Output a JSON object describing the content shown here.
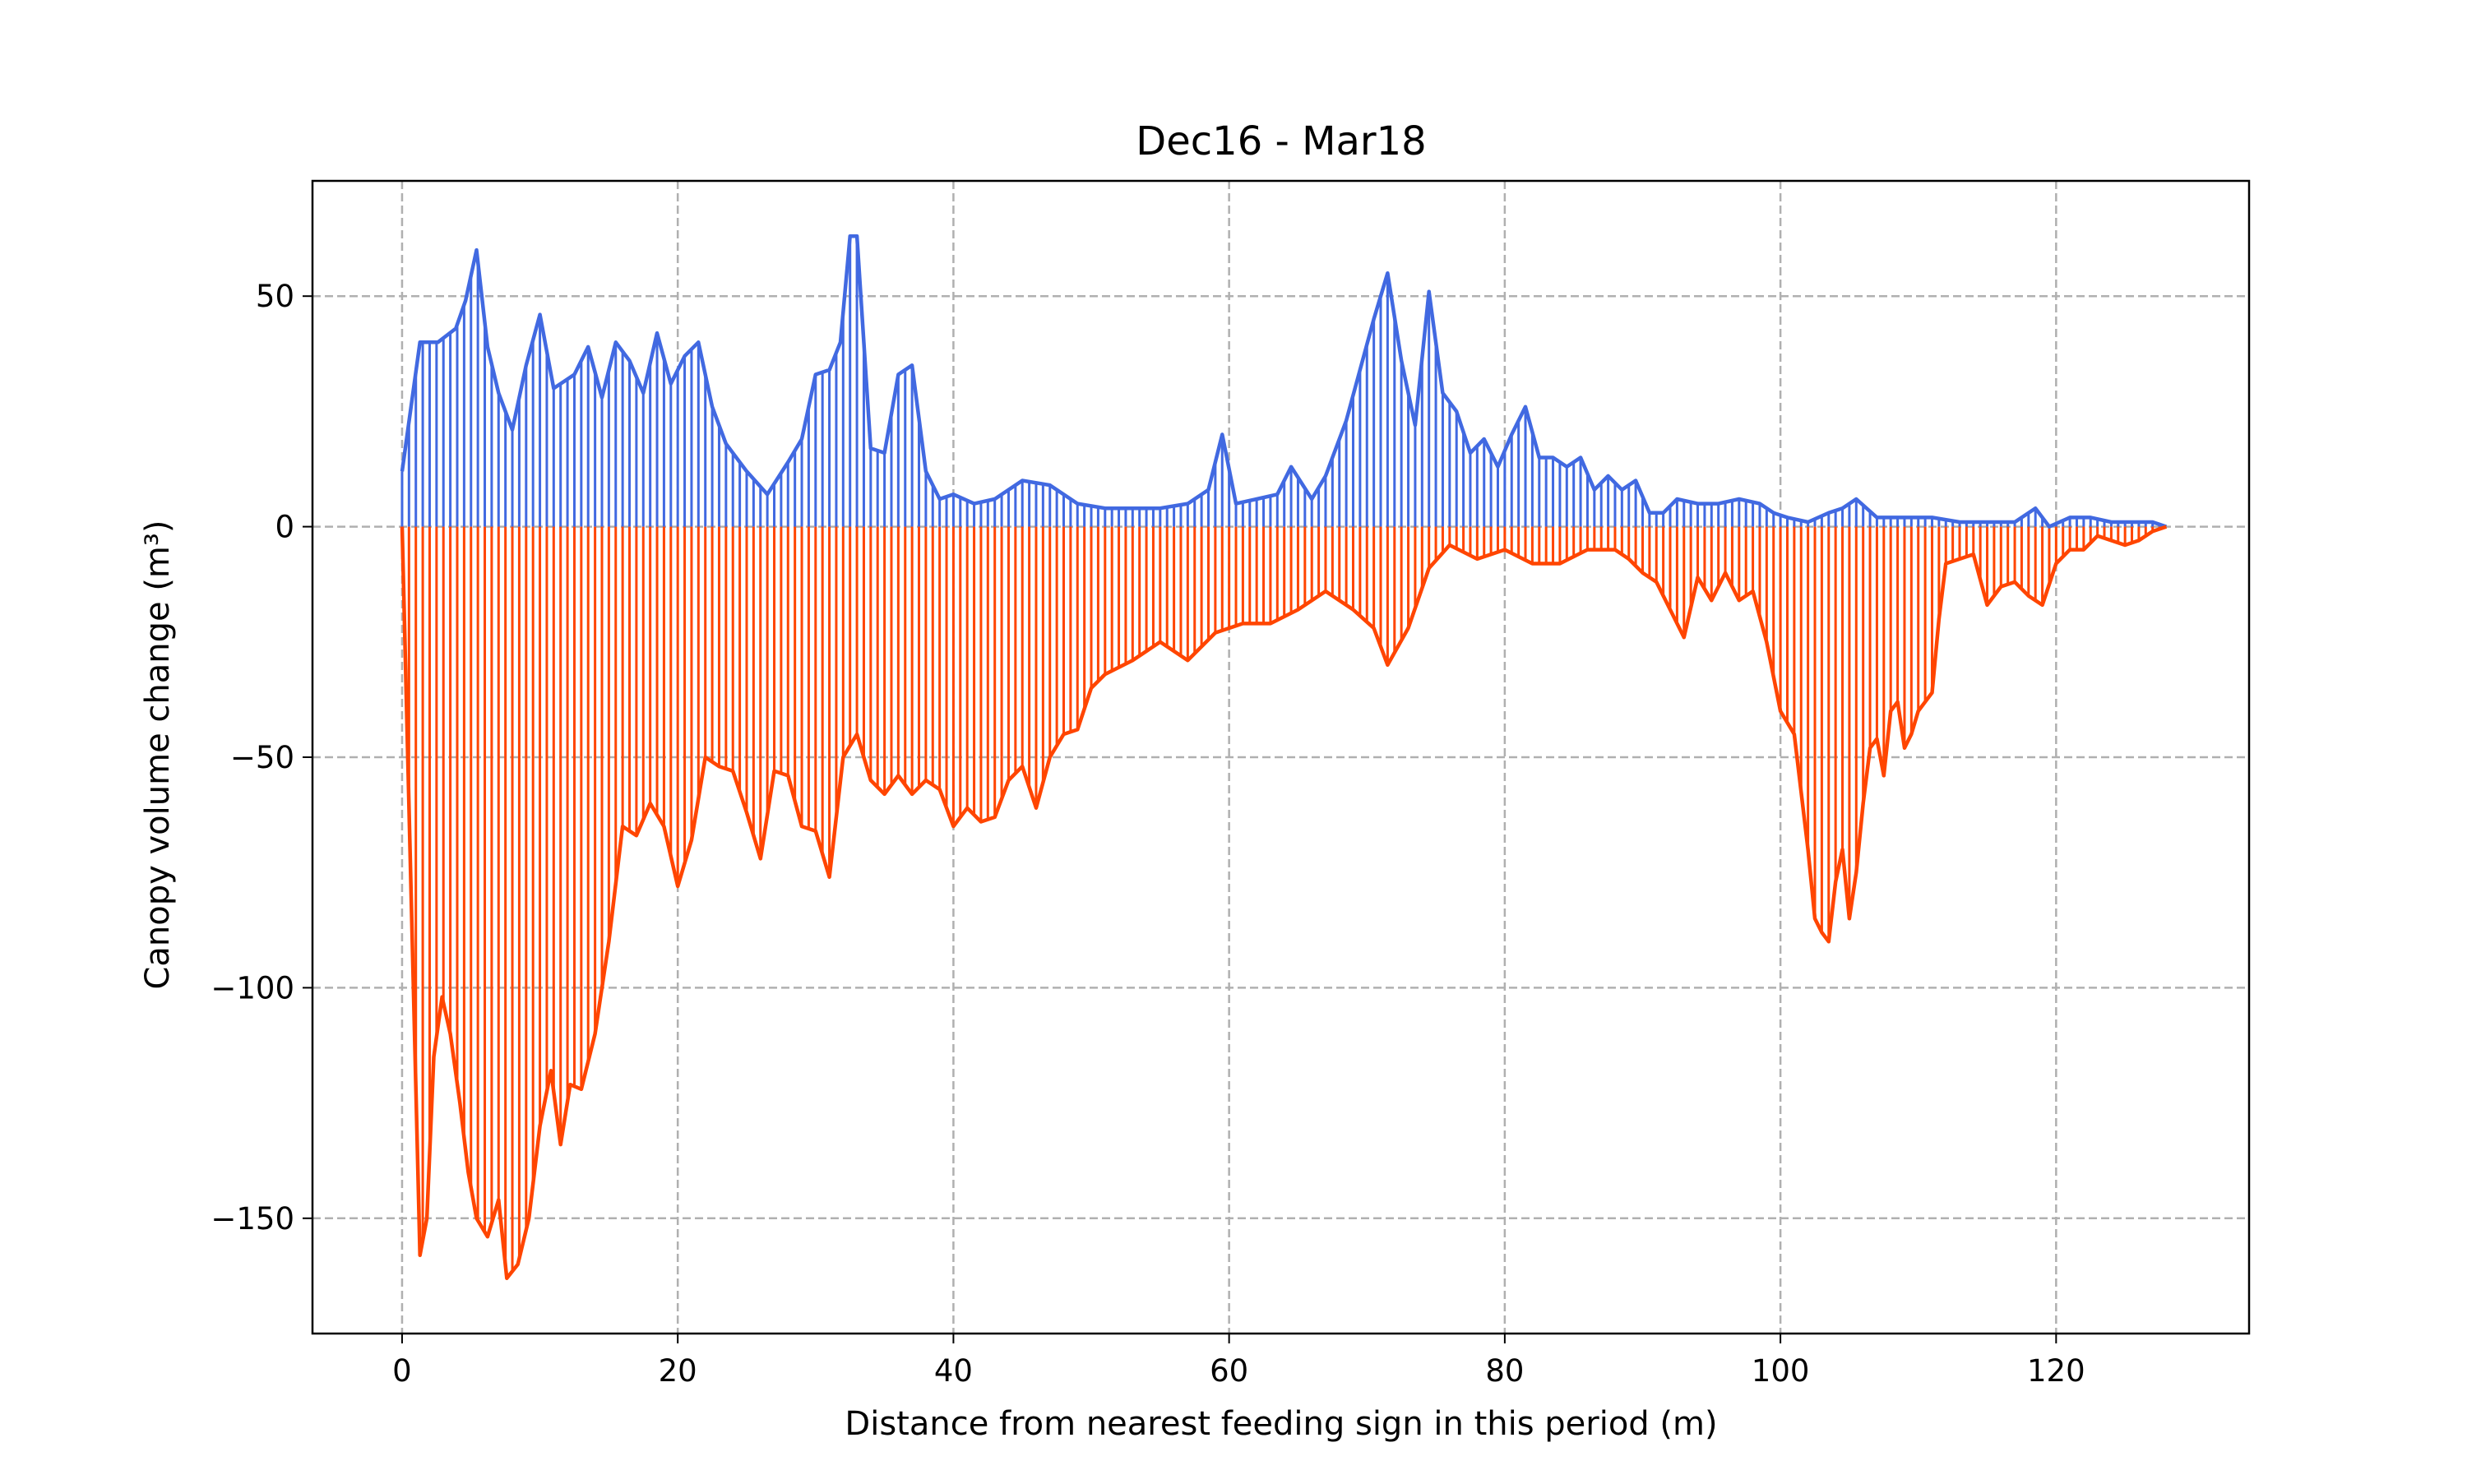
{
  "chart_data": {
    "type": "area",
    "title": "Dec16 - Mar18",
    "xlabel": "Distance from nearest feeding sign in this period (m)",
    "ylabel": "Canopy volume change (m³)",
    "xlim": [
      -6.5,
      134
    ],
    "ylim": [
      -175,
      75
    ],
    "xticks": [
      0,
      20,
      40,
      60,
      80,
      100,
      120
    ],
    "yticks": [
      -150,
      -100,
      -50,
      0,
      50
    ],
    "grid": true,
    "colors": {
      "gain": "#4169e1",
      "loss": "#ff4500"
    },
    "series": [
      {
        "key": "gain",
        "x": [
          0,
          1.3,
          2.6,
          3.9,
          4.6,
          5.4,
          6.2,
          7.0,
          8.0,
          9.0,
          10.0,
          11.0,
          12.5,
          13.5,
          14.5,
          15.5,
          16.5,
          17.5,
          18.5,
          19.5,
          20.5,
          21.5,
          22.5,
          23.5,
          25.0,
          26.5,
          28.0,
          29.0,
          30.0,
          31.0,
          31.8,
          32.5,
          33.0,
          34.0,
          35.0,
          36.0,
          37.0,
          38.0,
          39.0,
          40.0,
          41.5,
          43.0,
          45.0,
          47.0,
          49.0,
          51.0,
          53.0,
          55.0,
          57.0,
          58.5,
          59.5,
          60.5,
          62.0,
          63.5,
          64.5,
          66.0,
          67.0,
          68.5,
          70.5,
          71.5,
          72.5,
          73.5,
          74.5,
          75.5,
          76.5,
          77.5,
          78.5,
          79.5,
          80.5,
          81.5,
          82.5,
          83.5,
          84.5,
          85.5,
          86.5,
          87.5,
          88.5,
          89.5,
          90.5,
          91.5,
          92.5,
          94.0,
          95.5,
          97.0,
          98.5,
          99.5,
          100.5,
          102.0,
          103.5,
          104.5,
          105.5,
          107.0,
          109.0,
          111.0,
          113.0,
          115.0,
          117.0,
          118.5,
          119.5,
          121.0,
          122.5,
          124.0,
          125.5,
          127.0,
          128.0
        ],
        "values": [
          12,
          40,
          40,
          43,
          49,
          60,
          39,
          29,
          21,
          35,
          46,
          30,
          33,
          39,
          28,
          40,
          36,
          29,
          42,
          31,
          37,
          40,
          26,
          18,
          12,
          7,
          14,
          19,
          33,
          34,
          40,
          63,
          63,
          17,
          16,
          33,
          35,
          12,
          6,
          7,
          5,
          6,
          10,
          9,
          5,
          4,
          4,
          4,
          5,
          8,
          20,
          5,
          6,
          7,
          13,
          6,
          11,
          23,
          45,
          55,
          36,
          22,
          51,
          29,
          25,
          16,
          19,
          13,
          20,
          26,
          15,
          15,
          13,
          15,
          8,
          11,
          8,
          10,
          3,
          3,
          6,
          5,
          5,
          6,
          5,
          3,
          2,
          1,
          3,
          4,
          6,
          2,
          2,
          2,
          1,
          1,
          1,
          4,
          0,
          2,
          2,
          1,
          1,
          1,
          0
        ]
      },
      {
        "key": "loss",
        "x": [
          0,
          1.3,
          1.8,
          2.3,
          2.9,
          3.5,
          4.2,
          4.8,
          5.4,
          6.2,
          7.0,
          7.6,
          8.4,
          9.2,
          10.0,
          10.8,
          11.5,
          12.2,
          13.0,
          14.0,
          15.0,
          16.0,
          17.0,
          18.0,
          19.0,
          20.0,
          21.0,
          22.0,
          23.0,
          24.0,
          25.0,
          26.0,
          27.0,
          28.0,
          29.0,
          30.0,
          31.0,
          32.0,
          33.0,
          34.0,
          35.0,
          36.0,
          37.0,
          38.0,
          39.0,
          40.0,
          41.0,
          42.0,
          43.0,
          44.0,
          45.0,
          46.0,
          47.0,
          48.0,
          49.0,
          50.0,
          51.0,
          53.0,
          55.0,
          57.0,
          59.0,
          61.0,
          63.0,
          65.0,
          67.0,
          69.0,
          70.5,
          71.5,
          73.0,
          74.5,
          76.0,
          78.0,
          80.0,
          82.0,
          84.0,
          86.0,
          88.0,
          89.0,
          90.0,
          91.0,
          92.0,
          93.0,
          94.0,
          95.0,
          96.0,
          97.0,
          98.0,
          99.0,
          100.0,
          101.0,
          102.0,
          102.5,
          103.0,
          103.5,
          104.0,
          104.5,
          105.0,
          105.5,
          106.0,
          106.5,
          107.0,
          107.5,
          108.0,
          108.5,
          109.0,
          109.5,
          110.0,
          110.5,
          111.0,
          111.5,
          112.0,
          113.0,
          114.0,
          115.0,
          116.0,
          117.0,
          118.0,
          119.0,
          120.0,
          121.0,
          122.0,
          123.0,
          124.0,
          125.0,
          126.0,
          127.0,
          128.0
        ],
        "values": [
          0,
          -158,
          -150,
          -115,
          -102,
          -110,
          -125,
          -140,
          -150,
          -154,
          -146,
          -163,
          -160,
          -150,
          -130,
          -118,
          -134,
          -121,
          -122,
          -110,
          -90,
          -65,
          -67,
          -60,
          -65,
          -78,
          -68,
          -50,
          -52,
          -53,
          -62,
          -72,
          -53,
          -54,
          -65,
          -66,
          -76,
          -50,
          -45,
          -55,
          -58,
          -54,
          -58,
          -55,
          -57,
          -65,
          -61,
          -64,
          -63,
          -55,
          -52,
          -61,
          -50,
          -45,
          -44,
          -35,
          -32,
          -29,
          -25,
          -29,
          -23,
          -21,
          -21,
          -18,
          -14,
          -18,
          -22,
          -30,
          -22,
          -9,
          -4,
          -7,
          -5,
          -8,
          -8,
          -5,
          -5,
          -7,
          -10,
          -12,
          -18,
          -24,
          -11,
          -16,
          -10,
          -16,
          -14,
          -25,
          -40,
          -45,
          -70,
          -85,
          -88,
          -90,
          -77,
          -70,
          -85,
          -75,
          -60,
          -48,
          -46,
          -54,
          -40,
          -38,
          -48,
          -45,
          -40,
          -38,
          -36,
          -20,
          -8,
          -7,
          -6,
          -17,
          -13,
          -12,
          -15,
          -17,
          -8,
          -5,
          -5,
          -2,
          -3,
          -4,
          -3,
          -1,
          0
        ]
      }
    ]
  }
}
